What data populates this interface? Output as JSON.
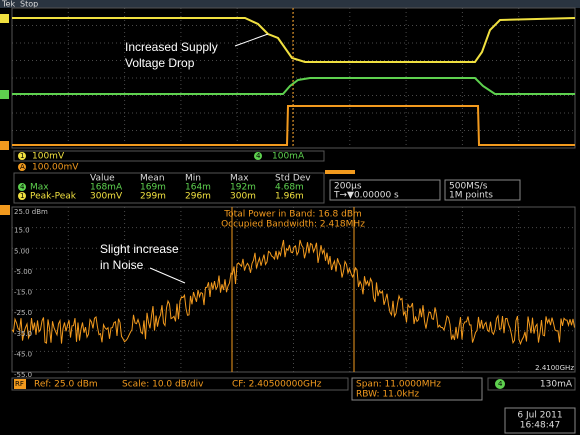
{
  "header": {
    "brand": "Tek",
    "state": "Stop"
  },
  "annotations": {
    "voltage_drop": [
      "Increased Supply",
      "Voltage Drop"
    ],
    "noise": [
      "Slight increase",
      "in Noise"
    ]
  },
  "channels": {
    "ch1": {
      "label": "1",
      "scale": "100mV"
    },
    "ch4": {
      "label": "4",
      "scale": "100mA"
    },
    "math": {
      "label": "A",
      "scale": "100.00mV"
    }
  },
  "measurements": {
    "columns": [
      "Value",
      "Mean",
      "Min",
      "Max",
      "Std Dev"
    ],
    "rows": [
      {
        "channel": "4",
        "name": "Max",
        "values": [
          "168mA",
          "169m",
          "164m",
          "192m",
          "4.68m"
        ]
      },
      {
        "channel": "1",
        "name": "Peak-Peak",
        "values": [
          "300mV",
          "299m",
          "296m",
          "300m",
          "1.96m"
        ]
      }
    ]
  },
  "timebase": {
    "scale": "200µs",
    "trigger": "T→▼0.00000 s"
  },
  "acquisition": {
    "rate": "500MS/s",
    "length": "1M points"
  },
  "spectrum": {
    "y_labels": [
      "25.0 dBm",
      "15.0",
      "5.00",
      "-5.00",
      "-15.0",
      "-25.0",
      "-35.0",
      "-45.0",
      "-55.0"
    ],
    "total_power": "Total Power in Band: 16.8 dBm",
    "occupied_bw": "Occupied Bandwidth: 2.418MHz",
    "stop_freq": "2.4100GHz"
  },
  "footer": {
    "rf": "RF",
    "ref": "Ref: 25.0 dBm",
    "scale": "Scale: 10.0 dB/div",
    "cf": "CF: 2.40500000GHz",
    "span": "Span: 11.0000MHz",
    "rbw": "RBW: 11.0kHz",
    "trig_ch": "4",
    "trig_level": "130mA",
    "date": "6 Jul 2011",
    "time": "16:48:47"
  }
}
